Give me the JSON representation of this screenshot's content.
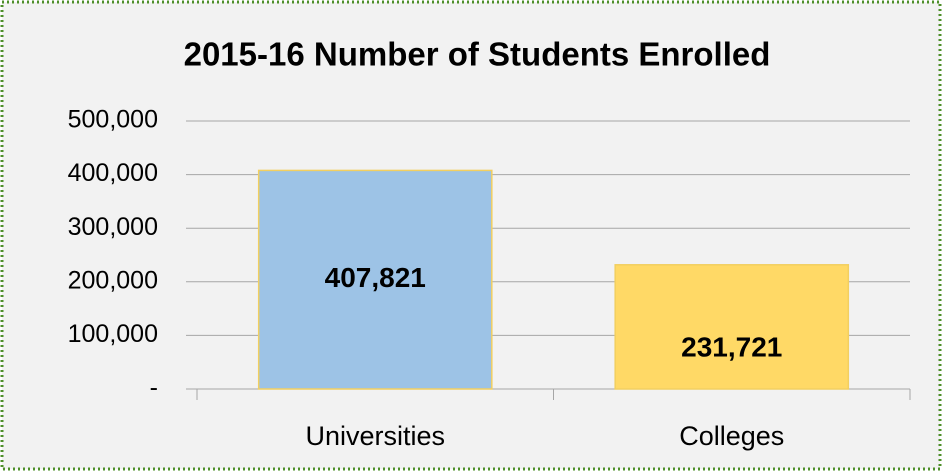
{
  "chart_data": {
    "type": "bar",
    "title": "2015-16 Number of Students Enrolled",
    "categories": [
      "Universities",
      "Colleges"
    ],
    "values": [
      407821,
      231721
    ],
    "value_labels": [
      "407,821",
      "231,721"
    ],
    "colors": [
      "#9dc3e6",
      "#ffd966"
    ],
    "ylim": [
      0,
      500000
    ],
    "yticks": [
      {
        "value": 0,
        "label": "-"
      },
      {
        "value": 100000,
        "label": "100,000"
      },
      {
        "value": 200000,
        "label": "200,000"
      },
      {
        "value": 300000,
        "label": "300,000"
      },
      {
        "value": 400000,
        "label": "400,000"
      },
      {
        "value": 500000,
        "label": "500,000"
      }
    ],
    "grid": true
  }
}
